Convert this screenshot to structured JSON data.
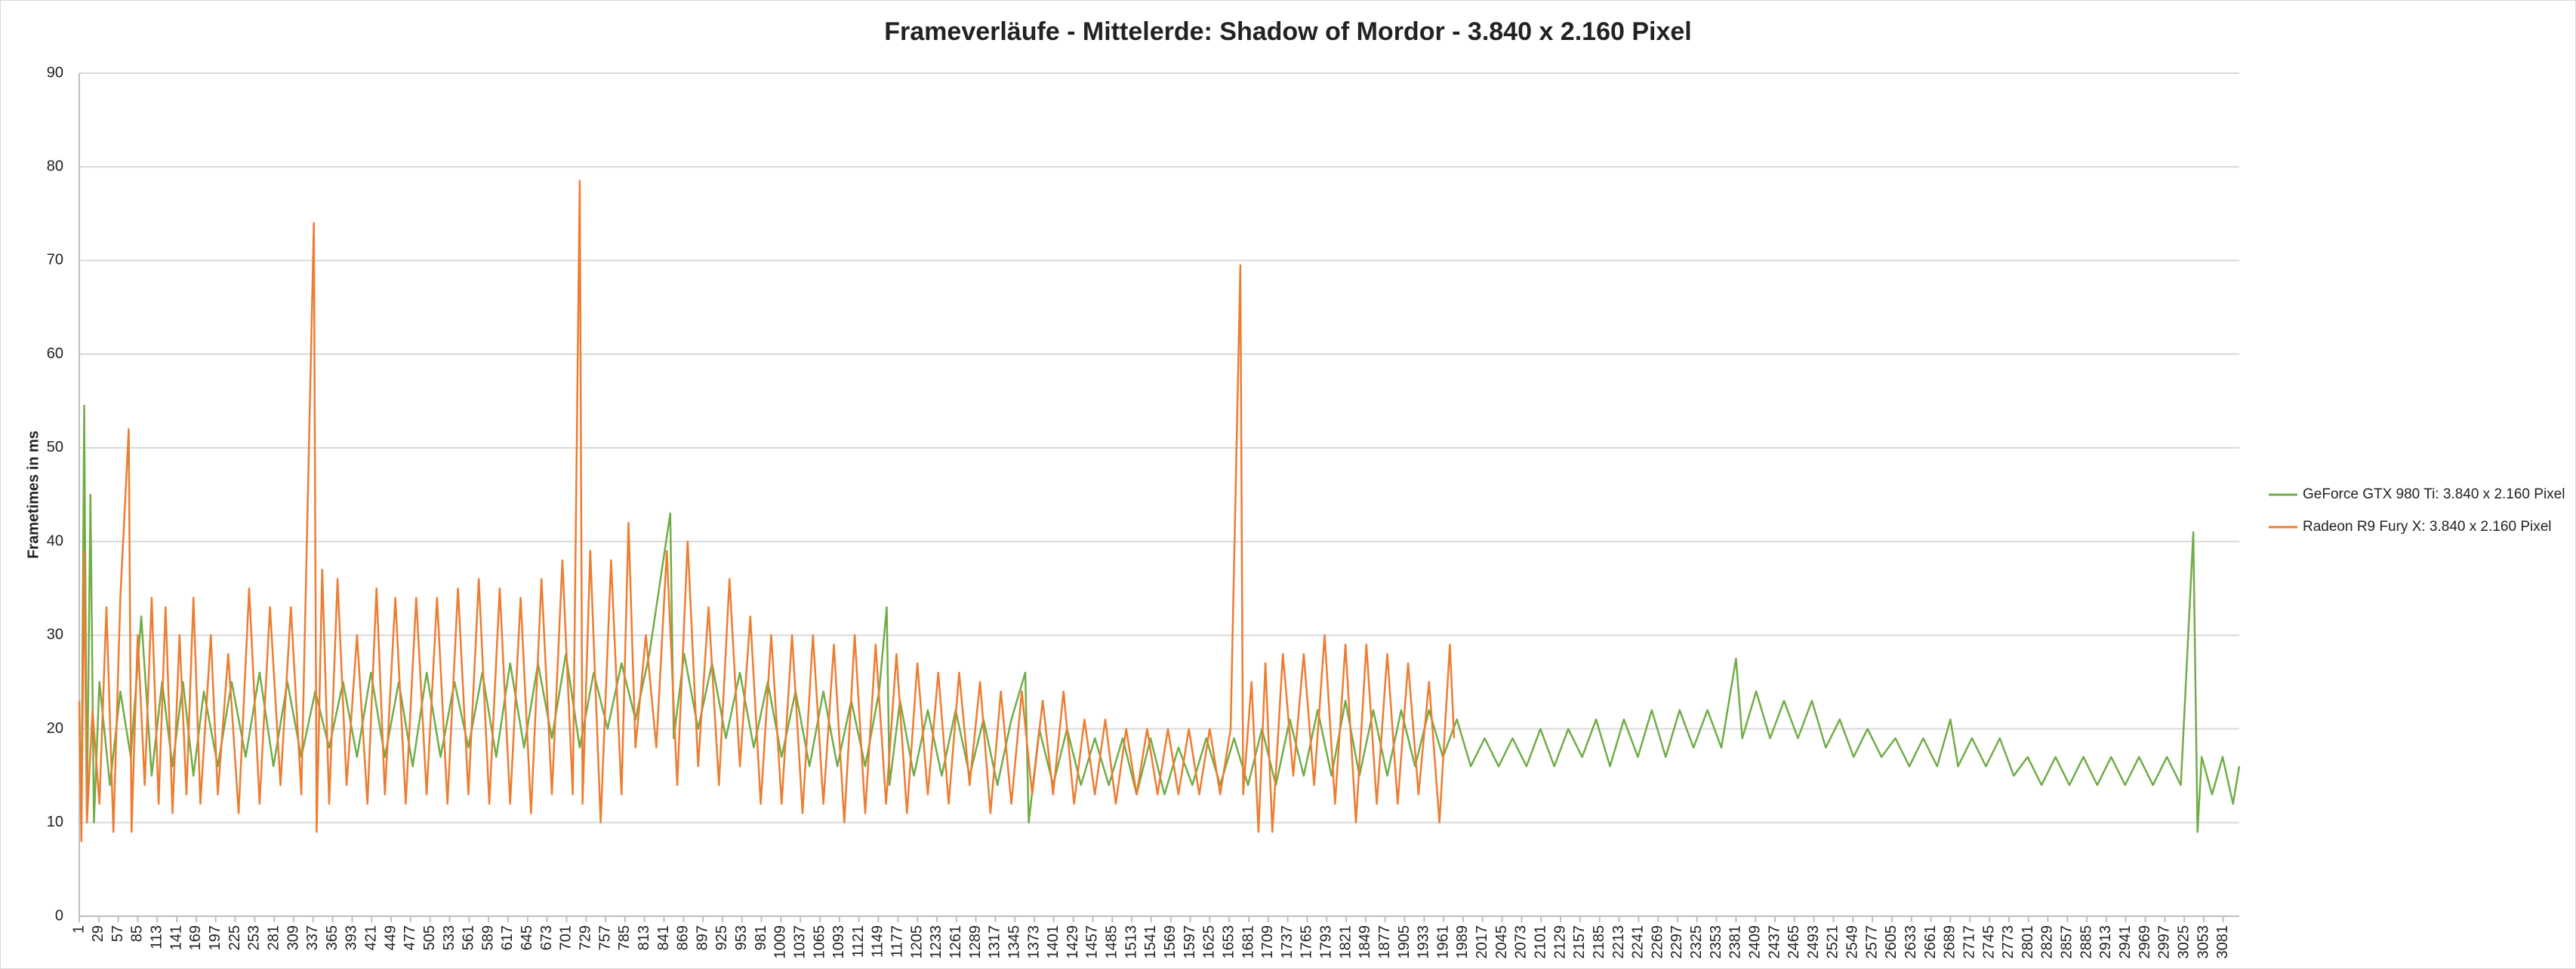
{
  "chart_data": {
    "type": "line",
    "title": "Frameverläufe - Mittelerde: Shadow of Mordor - 3.840 x 2.160 Pixel",
    "y_label": "Frametimes in ms",
    "xlim": [
      1,
      3104
    ],
    "ylim": [
      0,
      90
    ],
    "yticks": [
      0,
      10,
      20,
      30,
      40,
      50,
      60,
      70,
      80,
      90
    ],
    "xticks": [
      1,
      29,
      57,
      85,
      113,
      141,
      169,
      197,
      225,
      253,
      281,
      309,
      337,
      365,
      393,
      421,
      449,
      477,
      505,
      533,
      561,
      589,
      617,
      645,
      673,
      701,
      729,
      757,
      785,
      813,
      841,
      869,
      897,
      925,
      953,
      981,
      1009,
      1037,
      1065,
      1093,
      1121,
      1149,
      1177,
      1205,
      1233,
      1261,
      1289,
      1317,
      1345,
      1373,
      1401,
      1429,
      1457,
      1485,
      1513,
      1541,
      1569,
      1597,
      1625,
      1653,
      1681,
      1709,
      1737,
      1765,
      1793,
      1821,
      1849,
      1877,
      1905,
      1933,
      1961,
      1989,
      2017,
      2045,
      2073,
      2101,
      2129,
      2157,
      2185,
      2213,
      2241,
      2269,
      2297,
      2325,
      2353,
      2381,
      2409,
      2437,
      2465,
      2493,
      2521,
      2549,
      2577,
      2605,
      2633,
      2661,
      2689,
      2717,
      2745,
      2773,
      2801,
      2829,
      2857,
      2885,
      2913,
      2941,
      2969,
      2997,
      3025,
      3053,
      3081
    ],
    "grid": true,
    "legend": "right",
    "series": [
      {
        "name": "GeForce GTX 980 Ti: 3.840 x 2.160 Pixel",
        "color": "#70ad47",
        "x": [
          1,
          4,
          8,
          12,
          17,
          22,
          30,
          45,
          60,
          75,
          90,
          105,
          120,
          135,
          150,
          165,
          180,
          200,
          220,
          240,
          260,
          280,
          300,
          320,
          340,
          360,
          380,
          400,
          420,
          440,
          460,
          480,
          500,
          520,
          540,
          560,
          580,
          600,
          620,
          640,
          660,
          680,
          700,
          720,
          740,
          760,
          780,
          800,
          820,
          850,
          855,
          870,
          890,
          910,
          930,
          950,
          970,
          990,
          1010,
          1030,
          1050,
          1070,
          1090,
          1110,
          1130,
          1150,
          1161,
          1165,
          1180,
          1200,
          1220,
          1240,
          1260,
          1280,
          1300,
          1320,
          1340,
          1360,
          1365,
          1380,
          1400,
          1420,
          1440,
          1460,
          1480,
          1500,
          1520,
          1540,
          1560,
          1580,
          1600,
          1620,
          1640,
          1660,
          1680,
          1700,
          1720,
          1740,
          1760,
          1780,
          1800,
          1820,
          1840,
          1860,
          1880,
          1900,
          1920,
          1940,
          1960,
          1980,
          2000,
          2020,
          2040,
          2060,
          2080,
          2100,
          2120,
          2140,
          2160,
          2180,
          2200,
          2220,
          2240,
          2260,
          2280,
          2300,
          2320,
          2340,
          2360,
          2381,
          2390,
          2410,
          2430,
          2450,
          2470,
          2490,
          2510,
          2530,
          2550,
          2570,
          2590,
          2610,
          2630,
          2650,
          2670,
          2689,
          2700,
          2720,
          2740,
          2760,
          2780,
          2800,
          2820,
          2840,
          2860,
          2880,
          2900,
          2920,
          2940,
          2960,
          2980,
          3000,
          3020,
          3038,
          3044,
          3050,
          3065,
          3080,
          3095,
          3104
        ],
        "values": [
          22,
          10,
          54.5,
          11,
          45,
          10,
          25,
          14,
          24,
          17,
          32,
          15,
          25,
          16,
          25,
          15,
          24,
          16,
          25,
          17,
          26,
          16,
          25,
          17,
          24,
          18,
          25,
          17,
          26,
          17,
          25,
          16,
          26,
          17,
          25,
          18,
          26,
          17,
          27,
          18,
          27,
          19,
          28,
          18,
          26,
          20,
          27,
          21,
          28,
          43,
          19,
          28,
          20,
          27,
          19,
          26,
          18,
          25,
          17,
          24,
          16,
          24,
          16,
          23,
          16,
          24,
          33,
          14,
          23,
          15,
          22,
          15,
          22,
          15,
          21,
          14,
          21,
          26,
          10,
          20,
          14,
          20,
          14,
          19,
          14,
          19,
          13,
          19,
          13,
          18,
          14,
          19,
          14,
          19,
          14,
          20,
          14,
          21,
          15,
          22,
          15,
          23,
          15,
          22,
          15,
          22,
          16,
          22,
          17,
          21,
          16,
          19,
          16,
          19,
          16,
          20,
          16,
          20,
          17,
          21,
          16,
          21,
          17,
          22,
          17,
          22,
          18,
          22,
          18,
          27.5,
          19,
          24,
          19,
          23,
          19,
          23,
          18,
          21,
          17,
          20,
          17,
          19,
          16,
          19,
          16,
          21,
          16,
          19,
          16,
          19,
          15,
          17,
          14,
          17,
          14,
          17,
          14,
          17,
          14,
          17,
          14,
          17,
          14,
          41,
          9,
          17,
          13,
          17,
          12,
          16
        ]
      },
      {
        "name": "Radeon R9 Fury X: 3.840 x 2.160 Pixel",
        "color": "#ed7d31",
        "x": [
          1,
          4,
          8,
          12,
          20,
          30,
          40,
          50,
          60,
          72,
          76,
          85,
          95,
          105,
          115,
          125,
          135,
          145,
          155,
          165,
          175,
          190,
          200,
          215,
          230,
          245,
          260,
          275,
          290,
          305,
          320,
          338,
          342,
          350,
          360,
          372,
          385,
          400,
          415,
          428,
          440,
          455,
          470,
          485,
          500,
          515,
          530,
          545,
          560,
          575,
          590,
          605,
          620,
          635,
          650,
          665,
          680,
          695,
          710,
          720,
          724,
          735,
          750,
          765,
          780,
          790,
          800,
          815,
          830,
          845,
          860,
          875,
          890,
          905,
          920,
          935,
          950,
          965,
          980,
          995,
          1010,
          1025,
          1040,
          1055,
          1070,
          1085,
          1100,
          1115,
          1130,
          1145,
          1160,
          1175,
          1190,
          1205,
          1220,
          1235,
          1250,
          1265,
          1280,
          1295,
          1310,
          1325,
          1340,
          1355,
          1370,
          1385,
          1400,
          1415,
          1430,
          1445,
          1460,
          1475,
          1490,
          1505,
          1520,
          1535,
          1550,
          1565,
          1580,
          1595,
          1610,
          1625,
          1640,
          1655,
          1669,
          1673,
          1685,
          1695,
          1705,
          1715,
          1730,
          1745,
          1760,
          1775,
          1790,
          1805,
          1820,
          1835,
          1850,
          1865,
          1880,
          1895,
          1910,
          1925,
          1940,
          1955,
          1970,
          1976
        ],
        "values": [
          23,
          8,
          39,
          10,
          22,
          12,
          33,
          9,
          34,
          52,
          9,
          30,
          14,
          34,
          12,
          33,
          11,
          30,
          13,
          34,
          12,
          30,
          13,
          28,
          11,
          35,
          12,
          33,
          14,
          33,
          13,
          74,
          9,
          37,
          12,
          36,
          14,
          30,
          12,
          35,
          13,
          34,
          12,
          34,
          13,
          34,
          12,
          35,
          13,
          36,
          12,
          35,
          12,
          34,
          11,
          36,
          13,
          38,
          13,
          78.5,
          12,
          39,
          10,
          38,
          13,
          42,
          18,
          30,
          18,
          39,
          14,
          40,
          16,
          33,
          14,
          36,
          16,
          32,
          12,
          30,
          12,
          30,
          11,
          30,
          12,
          29,
          10,
          30,
          11,
          29,
          12,
          28,
          11,
          27,
          13,
          26,
          12,
          26,
          14,
          25,
          11,
          24,
          12,
          24,
          13,
          23,
          13,
          24,
          12,
          21,
          13,
          21,
          12,
          20,
          13,
          20,
          13,
          20,
          13,
          20,
          13,
          20,
          13,
          20,
          69.5,
          13,
          25,
          9,
          27,
          9,
          28,
          15,
          28,
          14,
          30,
          12,
          29,
          10,
          29,
          12,
          28,
          12,
          27,
          13,
          25,
          10,
          29,
          19
        ]
      }
    ]
  }
}
